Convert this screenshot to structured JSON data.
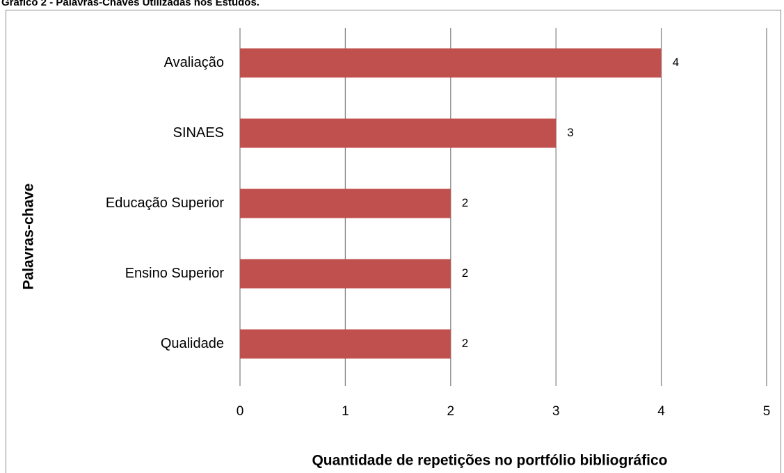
{
  "chart_data": {
    "type": "bar",
    "orientation": "horizontal",
    "title": "Gráfico 2 - Palavras-Chaves Utilizadas nos Estudos.",
    "x_label": "Quantidade de repetições no portfólio bibliográfico",
    "y_label": "Palavras-chave",
    "categories": [
      "Avaliação",
      "SINAES",
      "Educação Superior",
      "Ensino Superior",
      "Qualidade"
    ],
    "values": [
      4,
      3,
      2,
      2,
      2
    ],
    "color": "#c0504d",
    "xlim": [
      0,
      5
    ],
    "xticks": [
      0,
      1,
      2,
      3,
      4,
      5
    ],
    "grid": true
  }
}
